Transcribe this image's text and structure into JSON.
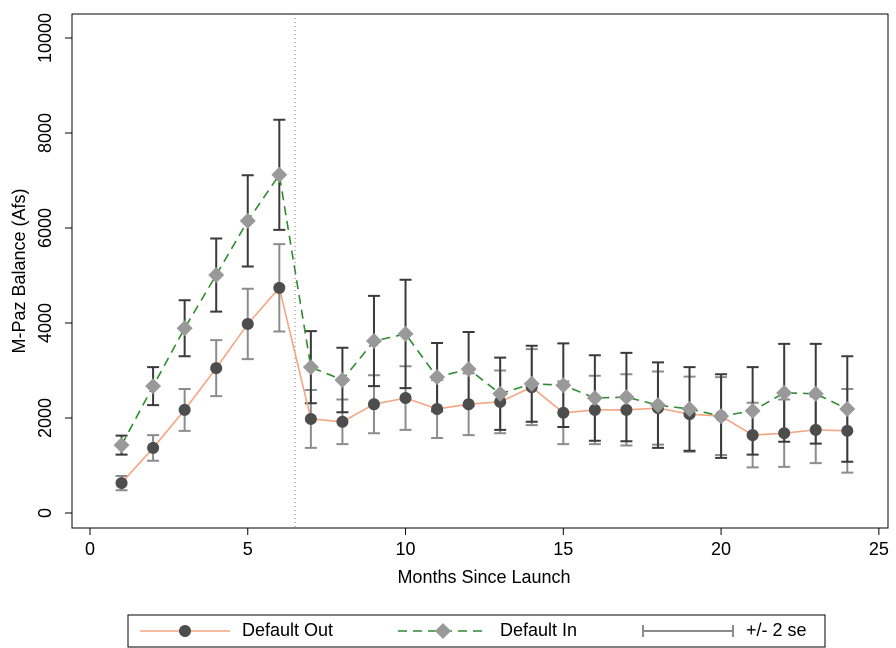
{
  "chart_data": {
    "type": "line",
    "x_label": "Months Since Launch",
    "y_label": "M-Paz Balance (Afs)",
    "x": [
      1,
      2,
      3,
      4,
      5,
      6,
      7,
      8,
      9,
      10,
      11,
      12,
      13,
      14,
      15,
      16,
      17,
      18,
      19,
      20,
      21,
      22,
      23,
      24
    ],
    "series": [
      {
        "name": "Default Out",
        "color": "#f4a582",
        "marker": "circle",
        "marker_color": "#4d4d4d",
        "dash": "solid",
        "error_color": "#8c8c8c",
        "values": [
          630,
          1370,
          2170,
          3050,
          3980,
          4740,
          1980,
          1920,
          2290,
          2420,
          2190,
          2290,
          2340,
          2650,
          2110,
          2170,
          2170,
          2210,
          2080,
          2040,
          1640,
          1680,
          1750,
          1730
        ],
        "errors": [
          150,
          270,
          440,
          590,
          740,
          920,
          610,
          470,
          610,
          670,
          610,
          650,
          660,
          800,
          660,
          720,
          750,
          770,
          790,
          820,
          680,
          710,
          700,
          880
        ]
      },
      {
        "name": "Default In",
        "color": "#2e8b2e",
        "marker": "diamond",
        "marker_color": "#999999",
        "dash": "dashed",
        "error_color": "#3a3a3a",
        "values": [
          1430,
          2670,
          3890,
          5010,
          6150,
          7120,
          3070,
          2800,
          3620,
          3770,
          2860,
          3030,
          2510,
          2720,
          2690,
          2420,
          2440,
          2270,
          2190,
          2040,
          2150,
          2530,
          2510,
          2190
        ],
        "errors": [
          200,
          400,
          590,
          770,
          960,
          1160,
          760,
          680,
          950,
          1140,
          720,
          780,
          760,
          800,
          880,
          900,
          930,
          900,
          880,
          880,
          920,
          1030,
          1050,
          1110
        ]
      }
    ],
    "error_legend": "+/- 2 se",
    "vline": 6.5,
    "xlim": [
      -0.57,
      25.29
    ],
    "ylim": [
      -316,
      10505
    ],
    "xticks": [
      0,
      5,
      10,
      15,
      20,
      25
    ],
    "yticks": [
      0,
      2000,
      4000,
      6000,
      8000,
      10000
    ]
  }
}
